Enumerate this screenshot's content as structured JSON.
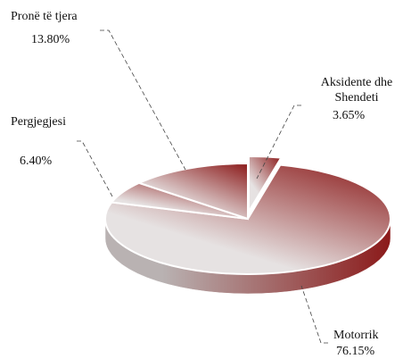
{
  "chart_data": {
    "type": "pie",
    "categories": [
      "Aksidente dhe Shendeti",
      "Motorrik",
      "Pergjegjesi",
      "Pronë të tjera"
    ],
    "values": [
      3.65,
      76.15,
      6.4,
      13.8
    ],
    "value_labels": [
      "3.65%",
      "76.15%",
      "6.40%",
      "13.80%"
    ],
    "colors": [
      "#8b1a1a",
      "#e6e2e2"
    ]
  }
}
